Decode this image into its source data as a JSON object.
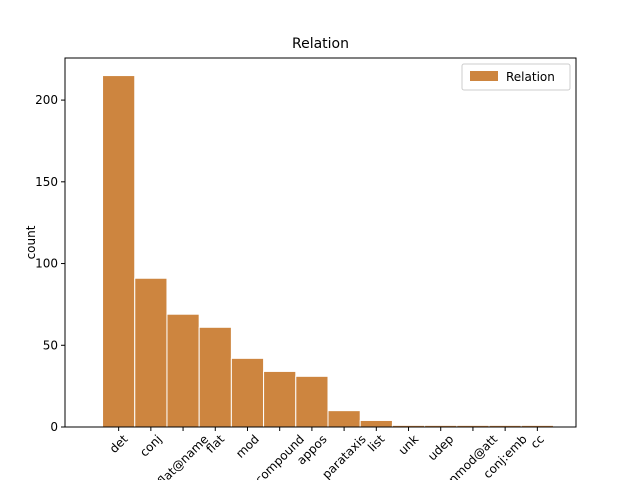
{
  "chart_data": {
    "type": "bar",
    "title": "Relation",
    "ylabel": "count",
    "categories": [
      "det",
      "conj",
      "flat@name",
      "flat",
      "mod",
      "compound",
      "appos",
      "parataxis",
      "list",
      "unk",
      "udep",
      "nmod@att",
      "conj:emb",
      "cc"
    ],
    "series": [
      {
        "name": "Relation",
        "color": "#cd853f",
        "values": [
          215,
          91,
          69,
          61,
          42,
          34,
          31,
          10,
          4,
          1,
          1,
          1,
          1,
          1
        ]
      }
    ],
    "ylim": [
      0,
      225.75
    ],
    "yticks": [
      0,
      50,
      100,
      150,
      200
    ],
    "grid": false,
    "legend": "upper right"
  }
}
